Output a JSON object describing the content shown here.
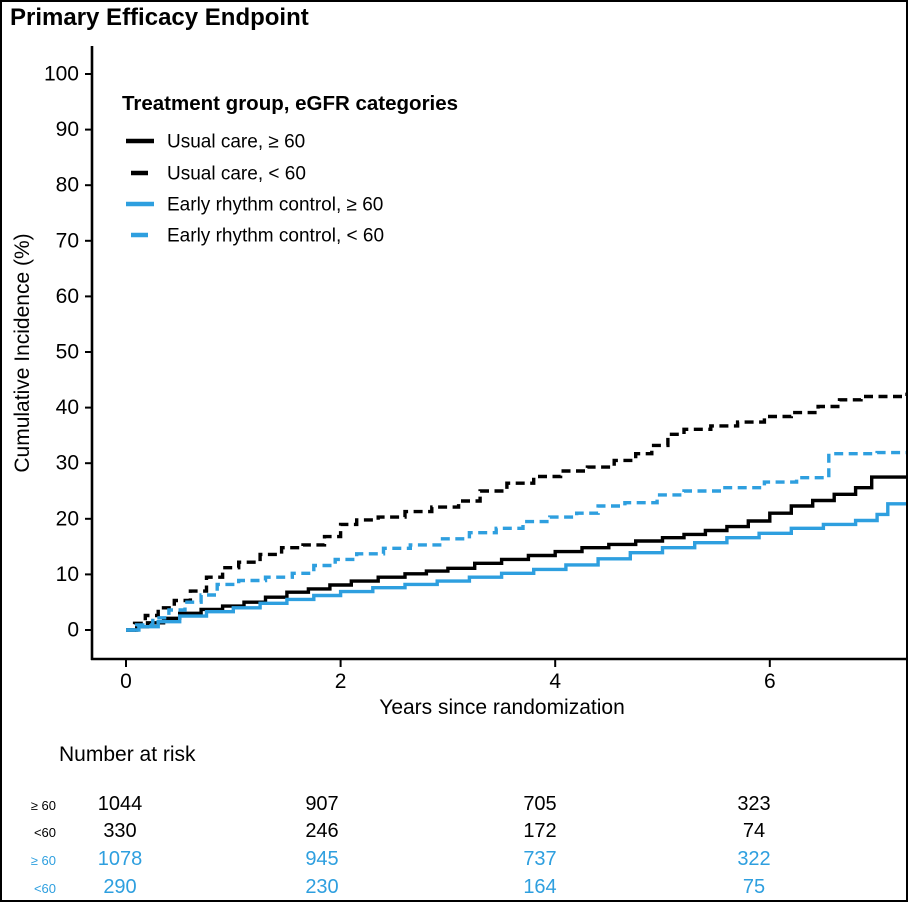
{
  "title": "Primary Efficacy Endpoint",
  "colors": {
    "black": "#000000",
    "blue": "#2E9FDF"
  },
  "legend": {
    "title": "Treatment group, eGFR categories"
  },
  "chart_data": {
    "type": "line",
    "step": true,
    "title": "Primary Efficacy Endpoint",
    "xlabel": "Years since randomization",
    "ylabel": "Cumulative Incidence (%)",
    "xlim": [
      0,
      7.43
    ],
    "ylim": [
      0,
      100
    ],
    "x_ticks": [
      "0",
      "2",
      "4",
      "6"
    ],
    "x_tick_values": [
      0,
      2,
      4,
      6
    ],
    "y_ticks": [
      "0",
      "10",
      "20",
      "30",
      "40",
      "50",
      "60",
      "70",
      "80",
      "90",
      "100"
    ],
    "y_tick_values": [
      0,
      10,
      20,
      30,
      40,
      50,
      60,
      70,
      80,
      90,
      100
    ],
    "grid": false,
    "legend_position": "top-left-inside",
    "series": [
      {
        "key": "usual-care-ge60",
        "name": "Usual care, ≥ 60",
        "color": "#000000",
        "dash": "solid",
        "points": [
          [
            0,
            0
          ],
          [
            0.1,
            0.6
          ],
          [
            0.2,
            1.3
          ],
          [
            0.35,
            2.1
          ],
          [
            0.5,
            3
          ],
          [
            0.7,
            3.7
          ],
          [
            0.9,
            4.3
          ],
          [
            1.1,
            5
          ],
          [
            1.3,
            5.9
          ],
          [
            1.5,
            6.8
          ],
          [
            1.7,
            7.4
          ],
          [
            1.9,
            8.1
          ],
          [
            2.1,
            8.8
          ],
          [
            2.35,
            9.5
          ],
          [
            2.6,
            10.1
          ],
          [
            2.8,
            10.6
          ],
          [
            3.0,
            11.1
          ],
          [
            3.25,
            12
          ],
          [
            3.5,
            12.7
          ],
          [
            3.75,
            13.4
          ],
          [
            4.0,
            14.1
          ],
          [
            4.25,
            14.8
          ],
          [
            4.5,
            15.4
          ],
          [
            4.75,
            16
          ],
          [
            5.0,
            16.6
          ],
          [
            5.2,
            17.2
          ],
          [
            5.4,
            17.9
          ],
          [
            5.6,
            18.6
          ],
          [
            5.8,
            19.6
          ],
          [
            6.0,
            21
          ],
          [
            6.2,
            22.3
          ],
          [
            6.4,
            23.3
          ],
          [
            6.6,
            24.4
          ],
          [
            6.8,
            25.6
          ],
          [
            6.95,
            27.5
          ],
          [
            7.43,
            27.5
          ]
        ]
      },
      {
        "key": "usual-care-lt60",
        "name": "Usual care, < 60",
        "color": "#000000",
        "dash": "dashed",
        "points": [
          [
            0,
            0
          ],
          [
            0.08,
            1.2
          ],
          [
            0.18,
            2.6
          ],
          [
            0.3,
            4
          ],
          [
            0.45,
            5.3
          ],
          [
            0.6,
            7
          ],
          [
            0.75,
            9.5
          ],
          [
            0.9,
            11.2
          ],
          [
            1.05,
            12.2
          ],
          [
            1.25,
            13.6
          ],
          [
            1.45,
            14.8
          ],
          [
            1.65,
            15.3
          ],
          [
            1.85,
            16.8
          ],
          [
            2.0,
            19
          ],
          [
            2.15,
            19.8
          ],
          [
            2.35,
            20.3
          ],
          [
            2.6,
            21.3
          ],
          [
            2.85,
            22.1
          ],
          [
            3.1,
            23.2
          ],
          [
            3.3,
            25
          ],
          [
            3.55,
            26.4
          ],
          [
            3.8,
            27.6
          ],
          [
            4.05,
            28.6
          ],
          [
            4.3,
            29.3
          ],
          [
            4.55,
            30.5
          ],
          [
            4.75,
            31.7
          ],
          [
            4.9,
            33.2
          ],
          [
            5.05,
            35.2
          ],
          [
            5.2,
            36.1
          ],
          [
            5.45,
            36.7
          ],
          [
            5.7,
            37.4
          ],
          [
            5.95,
            38.4
          ],
          [
            6.2,
            39.1
          ],
          [
            6.45,
            40.2
          ],
          [
            6.65,
            41.4
          ],
          [
            6.85,
            42
          ],
          [
            7.25,
            42.4
          ],
          [
            7.35,
            44
          ],
          [
            7.43,
            44.2
          ]
        ]
      },
      {
        "key": "early-rhythm-control-ge60",
        "name": "Early rhythm control, ≥ 60",
        "color": "#2E9FDF",
        "dash": "solid",
        "points": [
          [
            0,
            0
          ],
          [
            0.12,
            0.6
          ],
          [
            0.3,
            1.5
          ],
          [
            0.5,
            2.5
          ],
          [
            0.75,
            3.3
          ],
          [
            1.0,
            4
          ],
          [
            1.25,
            4.8
          ],
          [
            1.5,
            5.5
          ],
          [
            1.75,
            6.2
          ],
          [
            2.0,
            6.9
          ],
          [
            2.3,
            7.6
          ],
          [
            2.6,
            8.2
          ],
          [
            2.9,
            8.8
          ],
          [
            3.2,
            9.5
          ],
          [
            3.5,
            10.2
          ],
          [
            3.8,
            10.9
          ],
          [
            4.1,
            11.7
          ],
          [
            4.4,
            12.8
          ],
          [
            4.7,
            13.9
          ],
          [
            5.0,
            14.8
          ],
          [
            5.3,
            15.7
          ],
          [
            5.6,
            16.6
          ],
          [
            5.9,
            17.4
          ],
          [
            6.2,
            18.3
          ],
          [
            6.5,
            19
          ],
          [
            6.8,
            19.7
          ],
          [
            7.0,
            20.8
          ],
          [
            7.1,
            22.7
          ],
          [
            7.43,
            22.7
          ]
        ]
      },
      {
        "key": "early-rhythm-control-lt60",
        "name": "Early rhythm control, < 60",
        "color": "#2E9FDF",
        "dash": "dashed",
        "points": [
          [
            0,
            0
          ],
          [
            0.1,
            0.9
          ],
          [
            0.25,
            2.2
          ],
          [
            0.4,
            3.6
          ],
          [
            0.55,
            5
          ],
          [
            0.7,
            6.3
          ],
          [
            0.85,
            8.2
          ],
          [
            1.05,
            8.9
          ],
          [
            1.3,
            9.5
          ],
          [
            1.55,
            10.2
          ],
          [
            1.75,
            11.6
          ],
          [
            1.95,
            12.7
          ],
          [
            2.15,
            13.7
          ],
          [
            2.4,
            14.7
          ],
          [
            2.65,
            15.3
          ],
          [
            2.95,
            16.4
          ],
          [
            3.2,
            17.5
          ],
          [
            3.45,
            18.3
          ],
          [
            3.7,
            19.5
          ],
          [
            3.95,
            20.3
          ],
          [
            4.2,
            21
          ],
          [
            4.4,
            22.3
          ],
          [
            4.65,
            22.9
          ],
          [
            4.95,
            24.3
          ],
          [
            5.2,
            25
          ],
          [
            5.55,
            25.6
          ],
          [
            5.95,
            26.6
          ],
          [
            6.25,
            27.4
          ],
          [
            6.55,
            31.7
          ],
          [
            7.0,
            31.9
          ],
          [
            7.43,
            32
          ]
        ]
      }
    ]
  },
  "risk_table": {
    "header": "Number at risk",
    "time_points": [
      0,
      2,
      4,
      6
    ],
    "rows": [
      {
        "label": "≥ 60",
        "color": "#000000",
        "values": [
          "1044",
          "907",
          "705",
          "323"
        ]
      },
      {
        "label": "<60",
        "color": "#000000",
        "values": [
          "330",
          "246",
          "172",
          "74"
        ]
      },
      {
        "label": "≥ 60",
        "color": "#2E9FDF",
        "values": [
          "1078",
          "945",
          "737",
          "322"
        ]
      },
      {
        "label": "<60",
        "color": "#2E9FDF",
        "values": [
          "290",
          "230",
          "164",
          "75"
        ]
      }
    ]
  }
}
